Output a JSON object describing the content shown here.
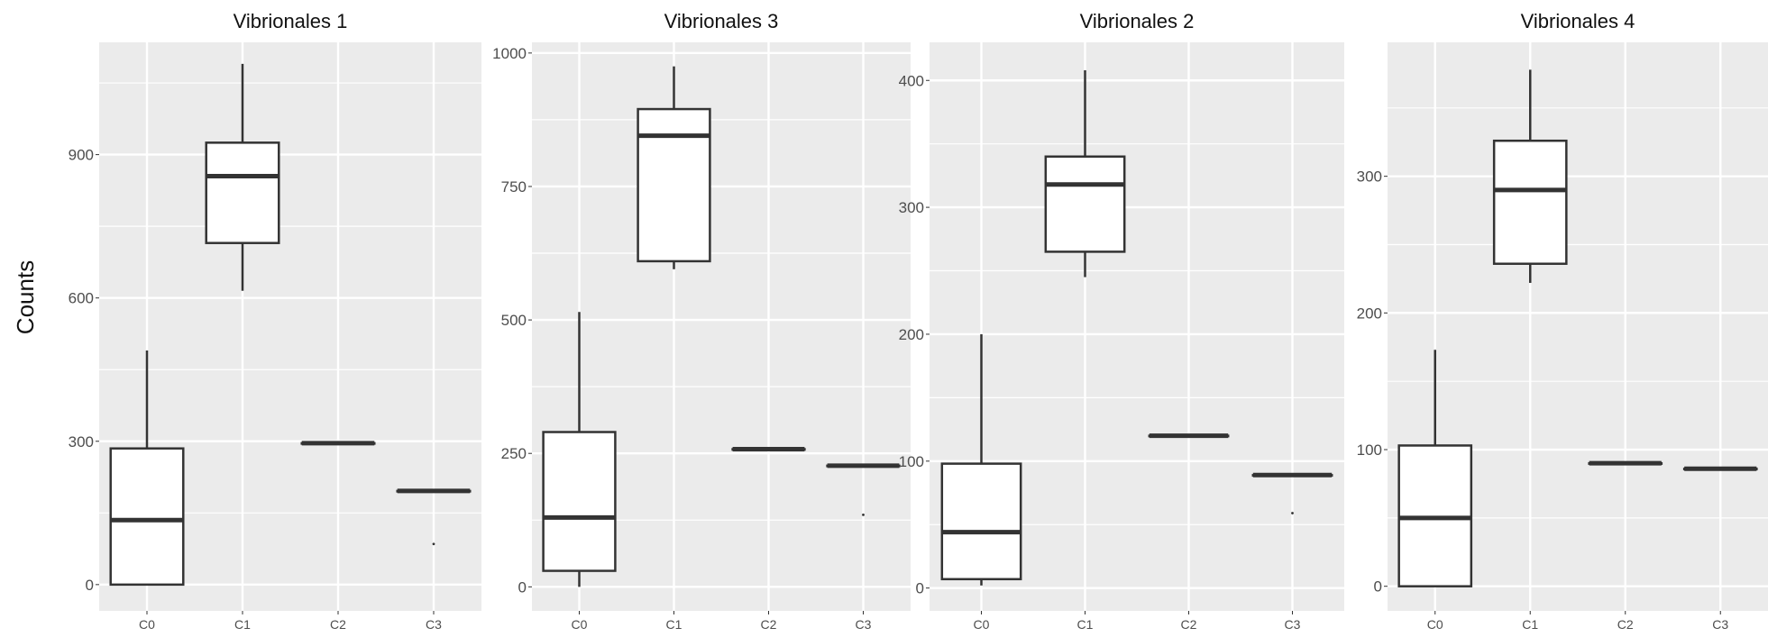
{
  "y_axis_label": "Counts",
  "colors": {
    "panel_bg": "#EBEBEB",
    "grid": "#FFFFFF",
    "box_stroke": "#333333",
    "box_fill": "#FFFFFF"
  },
  "chart_data": [
    {
      "type": "box",
      "title": "Vibrionales 1",
      "ylabel": "Counts",
      "categories": [
        "C0",
        "C1",
        "C2",
        "C3"
      ],
      "yticks": [
        0,
        300,
        600,
        900
      ],
      "ylim": [
        -55,
        1135
      ],
      "boxes": [
        {
          "category": "C0",
          "min": 0,
          "q1": 0,
          "median": 135,
          "q3": 285,
          "max": 490
        },
        {
          "category": "C1",
          "min": 615,
          "q1": 715,
          "median": 855,
          "q3": 925,
          "max": 1090
        },
        {
          "category": "C2",
          "min": 296,
          "q1": 296,
          "median": 296,
          "q3": 296,
          "max": 296
        },
        {
          "category": "C3",
          "min": 196,
          "q1": 196,
          "median": 196,
          "q3": 196,
          "max": 196
        }
      ],
      "outliers": [
        {
          "category": "C3",
          "value": 85
        }
      ],
      "grid": true
    },
    {
      "type": "box",
      "title": "Vibrionales 3",
      "ylabel": "",
      "categories": [
        "C0",
        "C1",
        "C2",
        "C3"
      ],
      "yticks": [
        0,
        250,
        500,
        750,
        1000
      ],
      "ylim": [
        -45,
        1020
      ],
      "boxes": [
        {
          "category": "C0",
          "min": 0,
          "q1": 30,
          "median": 130,
          "q3": 290,
          "max": 515
        },
        {
          "category": "C1",
          "min": 595,
          "q1": 610,
          "median": 845,
          "q3": 895,
          "max": 975
        },
        {
          "category": "C2",
          "min": 258,
          "q1": 258,
          "median": 258,
          "q3": 258,
          "max": 258
        },
        {
          "category": "C3",
          "min": 227,
          "q1": 227,
          "median": 227,
          "q3": 227,
          "max": 227
        }
      ],
      "outliers": [
        {
          "category": "C3",
          "value": 135
        }
      ],
      "grid": true
    },
    {
      "type": "box",
      "title": "Vibrionales 2",
      "ylabel": "",
      "categories": [
        "C0",
        "C1",
        "C2",
        "C3"
      ],
      "yticks": [
        0,
        100,
        200,
        300,
        400
      ],
      "ylim": [
        -18,
        430
      ],
      "boxes": [
        {
          "category": "C0",
          "min": 2,
          "q1": 7,
          "median": 44,
          "q3": 98,
          "max": 200
        },
        {
          "category": "C1",
          "min": 245,
          "q1": 265,
          "median": 318,
          "q3": 340,
          "max": 408
        },
        {
          "category": "C2",
          "min": 120,
          "q1": 120,
          "median": 120,
          "q3": 120,
          "max": 120
        },
        {
          "category": "C3",
          "min": 89,
          "q1": 89,
          "median": 89,
          "q3": 89,
          "max": 89
        }
      ],
      "outliers": [
        {
          "category": "C3",
          "value": 59
        }
      ],
      "grid": true
    },
    {
      "type": "box",
      "title": "Vibrionales 4",
      "ylabel": "",
      "categories": [
        "C0",
        "C1",
        "C2",
        "C3"
      ],
      "yticks": [
        0,
        100,
        200,
        300
      ],
      "ylim": [
        -18,
        398
      ],
      "boxes": [
        {
          "category": "C0",
          "min": 0,
          "q1": 0,
          "median": 50,
          "q3": 103,
          "max": 173
        },
        {
          "category": "C1",
          "min": 222,
          "q1": 236,
          "median": 290,
          "q3": 326,
          "max": 378
        },
        {
          "category": "C2",
          "min": 90,
          "q1": 90,
          "median": 90,
          "q3": 90,
          "max": 90
        },
        {
          "category": "C3",
          "min": 86,
          "q1": 86,
          "median": 86,
          "q3": 86,
          "max": 86
        }
      ],
      "outliers": [],
      "grid": true
    }
  ]
}
